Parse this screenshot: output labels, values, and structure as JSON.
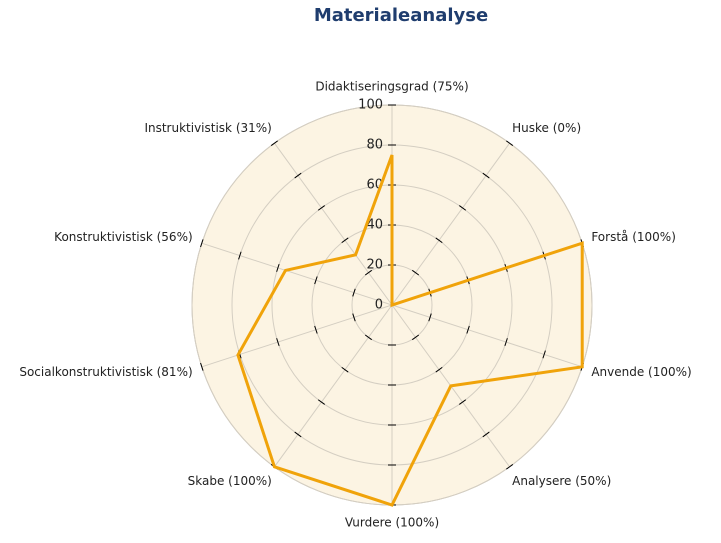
{
  "chart_data": {
    "type": "radar",
    "title": "Materialeanalyse",
    "categories": [
      "Didaktiseringsgrad (75%)",
      "Huske (0%)",
      "Forstå (100%)",
      "Anvende (100%)",
      "Analysere (50%)",
      "Vurdere (100%)",
      "Skabe (100%)",
      "Socialkonstruktivistisk (81%)",
      "Konstruktivistisk (56%)",
      "Instruktivistisk (31%)"
    ],
    "values": [
      75,
      0,
      100,
      100,
      50,
      100,
      100,
      81,
      56,
      31
    ],
    "color": "#f0a30a",
    "ylim": [
      0,
      100
    ],
    "yticks": [
      0,
      20,
      40,
      60,
      80,
      100
    ],
    "grid": true
  }
}
